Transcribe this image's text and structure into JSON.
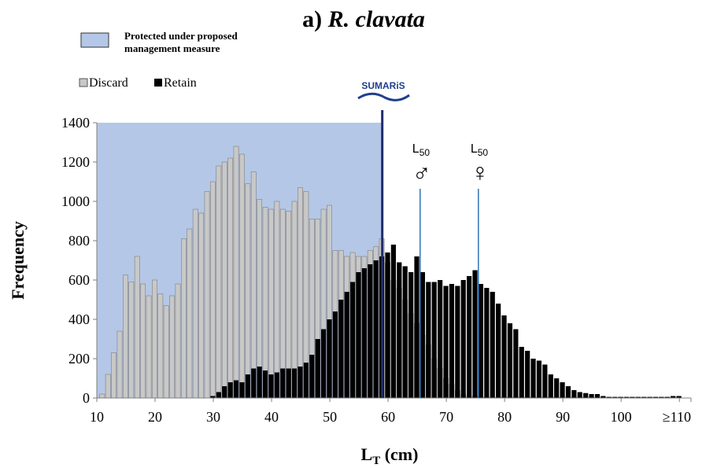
{
  "chart_data": {
    "type": "bar",
    "title_prefix": "a) ",
    "title_species": "R. clavata",
    "xlabel_main": "L",
    "xlabel_sub": "T",
    "xlabel_unit": " (cm)",
    "ylabel": "Frequency",
    "xlim": [
      10,
      112
    ],
    "ylim": [
      0,
      1400
    ],
    "x_ticks": [
      10,
      20,
      30,
      40,
      50,
      60,
      70,
      80,
      90,
      100
    ],
    "x_tick_labels": [
      "10",
      "20",
      "30",
      "40",
      "50",
      "60",
      "70",
      "80",
      "90",
      "100"
    ],
    "last_x_tick_label": "≥110",
    "y_ticks": [
      0,
      200,
      400,
      600,
      800,
      1000,
      1200,
      1400
    ],
    "y_tick_labels": [
      "0",
      "200",
      "400",
      "600",
      "800",
      "1000",
      "1200",
      "1400"
    ],
    "protected_region": {
      "from": 10,
      "to": 59
    },
    "legend": {
      "protected_label_line1": "Protected under proposed",
      "protected_label_line2": "management measure",
      "discard_label": "Discard",
      "retain_label": "Retain"
    },
    "logo_text": "SUMARiS",
    "annotations": [
      {
        "label_main": "L",
        "label_sub": "50",
        "symbol": "♂",
        "x": 65.5
      },
      {
        "label_main": "L",
        "label_sub": "50",
        "symbol": "♀",
        "x": 75.5
      }
    ],
    "colors": {
      "discard": "#c8c8c8",
      "retain": "#000000",
      "protected": "#b4c7e7",
      "cutoff_line": "#1f2d6b",
      "l50_line": "#2e75b6"
    },
    "bin_width": 1,
    "x": [
      11,
      12,
      13,
      14,
      15,
      16,
      17,
      18,
      19,
      20,
      21,
      22,
      23,
      24,
      25,
      26,
      27,
      28,
      29,
      30,
      31,
      32,
      33,
      34,
      35,
      36,
      37,
      38,
      39,
      40,
      41,
      42,
      43,
      44,
      45,
      46,
      47,
      48,
      49,
      50,
      51,
      52,
      53,
      54,
      55,
      56,
      57,
      58,
      59,
      60,
      61,
      62,
      63,
      64,
      65,
      66,
      67,
      68,
      69,
      70,
      71,
      72,
      73,
      74,
      75,
      76,
      77,
      78,
      79,
      80,
      81,
      82,
      83,
      84,
      85,
      86,
      87,
      88,
      89,
      90,
      91,
      92,
      93,
      94,
      95,
      96,
      97,
      98,
      99,
      100,
      101,
      102,
      103,
      104,
      105,
      106,
      107,
      108,
      109,
      110
    ],
    "series": [
      {
        "name": "Discard",
        "values": [
          20,
          120,
          230,
          340,
          625,
          590,
          720,
          580,
          520,
          600,
          530,
          470,
          520,
          580,
          810,
          860,
          960,
          940,
          1050,
          1100,
          1180,
          1200,
          1220,
          1280,
          1240,
          1090,
          1150,
          1010,
          970,
          960,
          1000,
          960,
          950,
          1000,
          1070,
          1050,
          910,
          910,
          960,
          980,
          750,
          750,
          720,
          740,
          720,
          720,
          750,
          770,
          810,
          690,
          600,
          560,
          500,
          430,
          380,
          320,
          270,
          200,
          150,
          100,
          70,
          40,
          20,
          10,
          10,
          5,
          5,
          5,
          5,
          5,
          5,
          5,
          5,
          5,
          5,
          5,
          5,
          5,
          5,
          5,
          5,
          5,
          5,
          5,
          5,
          5,
          5,
          5,
          5,
          5,
          5,
          5,
          5,
          5,
          5,
          5,
          5,
          5,
          5,
          5
        ]
      },
      {
        "name": "Retain",
        "values": [
          0,
          0,
          0,
          0,
          0,
          0,
          0,
          0,
          0,
          0,
          0,
          0,
          0,
          0,
          0,
          0,
          0,
          0,
          0,
          10,
          30,
          60,
          80,
          90,
          80,
          120,
          150,
          160,
          140,
          120,
          130,
          150,
          150,
          150,
          160,
          180,
          220,
          300,
          350,
          400,
          440,
          500,
          540,
          590,
          640,
          660,
          680,
          700,
          720,
          740,
          780,
          690,
          670,
          640,
          720,
          640,
          590,
          590,
          600,
          570,
          580,
          570,
          600,
          620,
          650,
          580,
          560,
          540,
          480,
          420,
          380,
          350,
          260,
          240,
          200,
          190,
          170,
          120,
          100,
          80,
          60,
          40,
          30,
          25,
          20,
          20,
          10,
          5,
          5,
          5,
          5,
          5,
          5,
          5,
          5,
          5,
          5,
          5,
          10,
          10
        ]
      }
    ]
  }
}
